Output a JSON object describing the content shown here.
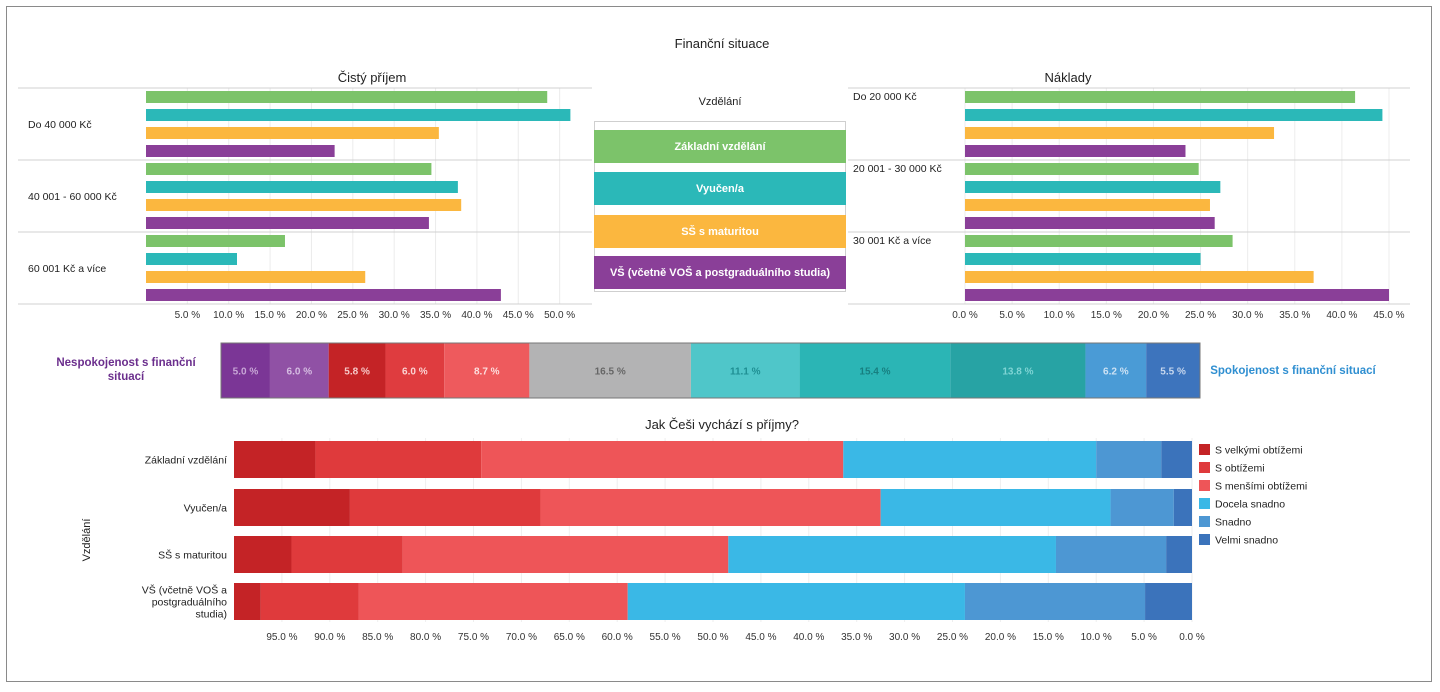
{
  "title": "Finanční situace",
  "colors": {
    "zakladni": "#7cc36a",
    "vyucen": "#2bb8b8",
    "ss": "#fbb73f",
    "vs": "#8a3f98",
    "dark_red": "#c42326",
    "red": "#e03a3c",
    "light_red": "#ee5558",
    "cyan": "#3ab8e6",
    "mid_blue": "#4d97d3",
    "dark_blue": "#3b73bb",
    "gray": "#b3b3b4",
    "purple_label": "#6b2e8d",
    "blue_label": "#2f8fd1"
  },
  "legend_center": {
    "title": "Vzdělání",
    "items": [
      "Základní vzdělání",
      "Vyučen/a",
      "SŠ s maturitou",
      "VŠ (včetně VOŠ a postgraduálního studia)"
    ]
  },
  "chart_data": [
    {
      "type": "bar",
      "orientation": "horizontal",
      "title": "Čistý příjem",
      "categories": [
        "Do 40 000 Kč",
        "40 001 - 60 000 Kč",
        "60 001 Kč a více"
      ],
      "series": [
        {
          "name": "Základní vzdělání",
          "values": [
            48.5,
            34.5,
            16.8
          ]
        },
        {
          "name": "Vyučen/a",
          "values": [
            51.3,
            37.7,
            11.0
          ]
        },
        {
          "name": "SŠ s maturitou",
          "values": [
            35.4,
            38.1,
            26.5
          ]
        },
        {
          "name": "VŠ (včetně VOŠ a postgraduálního studia)",
          "values": [
            22.8,
            34.2,
            42.9
          ]
        }
      ],
      "xlim": [
        0,
        55
      ],
      "xticks": [
        "5.0 %",
        "10.0 %",
        "15.0 %",
        "20.0 %",
        "25.0 %",
        "30.0 %",
        "35.0 %",
        "40.0 %",
        "45.0 %",
        "50.0 %"
      ]
    },
    {
      "type": "bar",
      "orientation": "horizontal",
      "title": "Náklady",
      "categories": [
        "Do 20 000 Kč",
        "20 001 - 30 000 Kč",
        "30 001 Kč a více"
      ],
      "series": [
        {
          "name": "Základní vzdělání",
          "values": [
            41.4,
            24.8,
            28.4
          ]
        },
        {
          "name": "Vyučen/a",
          "values": [
            44.3,
            27.1,
            25.0
          ]
        },
        {
          "name": "SŠ s maturitou",
          "values": [
            32.8,
            26.0,
            37.0
          ]
        },
        {
          "name": "VŠ (včetně VOŠ a postgraduálního studia)",
          "values": [
            23.4,
            26.5,
            45.0
          ]
        }
      ],
      "xlim": [
        0,
        45
      ],
      "xticks": [
        "0.0 %",
        "5.0 %",
        "10.0 %",
        "15.0 %",
        "20.0 %",
        "25.0 %",
        "30.0 %",
        "35.0 %",
        "40.0 %",
        "45.0 %"
      ]
    },
    {
      "type": "bar",
      "orientation": "horizontal",
      "stacked": true,
      "left_label": "Nespokojenost s finanční situací",
      "right_label": "Spokojenost s finanční situací",
      "segments": [
        {
          "label": "5.0 %",
          "value": 5.0,
          "color": "#7b3696",
          "text_color": "#c8a6d6"
        },
        {
          "label": "6.0 %",
          "value": 6.0,
          "color": "#9051a5",
          "text_color": "#d6bde2"
        },
        {
          "label": "5.8 %",
          "value": 5.8,
          "color": "#c42326",
          "text_color": "#f6c9c9"
        },
        {
          "label": "6.0 %",
          "value": 6.0,
          "color": "#df3c3f",
          "text_color": "#fbd3d3"
        },
        {
          "label": "8.7 %",
          "value": 8.7,
          "color": "#ee5a5d",
          "text_color": "#fcdede"
        },
        {
          "label": "16.5 %",
          "value": 16.5,
          "color": "#b3b3b4",
          "text_color": "#666666"
        },
        {
          "label": "11.1 %",
          "value": 11.1,
          "color": "#4fc6c9",
          "text_color": "#1f8f93"
        },
        {
          "label": "15.4 %",
          "value": 15.4,
          "color": "#2bb5b5",
          "text_color": "#177f80"
        },
        {
          "label": "13.8 %",
          "value": 13.8,
          "color": "#27a3a4",
          "text_color": "#7fd4d4"
        },
        {
          "label": "6.2 %",
          "value": 6.2,
          "color": "#4a9bd6",
          "text_color": "#cde2f4"
        },
        {
          "label": "5.5 %",
          "value": 5.5,
          "color": "#3d74bd",
          "text_color": "#c7d7ee"
        }
      ]
    },
    {
      "type": "bar",
      "orientation": "horizontal",
      "stacked": true,
      "title": "Jak Češi vychází s příjmy?",
      "ylabel": "Vzdělání",
      "categories": [
        "Základní vzdělání",
        "Vyučen/a",
        "SŠ s maturitou",
        "VŠ (včetně VOŠ a postgraduálního studia)"
      ],
      "category_lines": [
        [
          "Základní vzdělání"
        ],
        [
          "Vyučen/a"
        ],
        [
          "SŠ s maturitou"
        ],
        [
          "VŠ (včetně VOŠ a",
          "postgraduálního",
          "studia)"
        ]
      ],
      "series": [
        {
          "name": "S velkými obtížemi",
          "color": "#c42326",
          "values": [
            8.5,
            12.1,
            6.0,
            2.8
          ]
        },
        {
          "name": "S obtížemi",
          "color": "#df3a3c",
          "values": [
            17.3,
            19.9,
            11.6,
            10.2
          ]
        },
        {
          "name": "S menšími obtížemi",
          "color": "#ee5558",
          "values": [
            37.8,
            35.5,
            34.0,
            28.1
          ]
        },
        {
          "name": "Docela snadno",
          "color": "#3ab8e6",
          "values": [
            26.4,
            24.0,
            34.2,
            35.2
          ]
        },
        {
          "name": "Snadno",
          "color": "#4d97d3",
          "values": [
            6.8,
            6.6,
            11.5,
            18.8
          ]
        },
        {
          "name": "Velmi snadno",
          "color": "#3b73bb",
          "values": [
            3.2,
            1.9,
            2.7,
            4.9
          ]
        }
      ],
      "xlim": [
        100,
        0
      ],
      "xticks": [
        "95.0 %",
        "90.0 %",
        "85.0 %",
        "80.0 %",
        "75.0 %",
        "70.0 %",
        "65.0 %",
        "60.0 %",
        "55.0 %",
        "50.0 %",
        "45.0 %",
        "40.0 %",
        "35.0 %",
        "30.0 %",
        "25.0 %",
        "20.0 %",
        "15.0 %",
        "10.0 %",
        "5.0 %",
        "0.0 %"
      ]
    }
  ]
}
